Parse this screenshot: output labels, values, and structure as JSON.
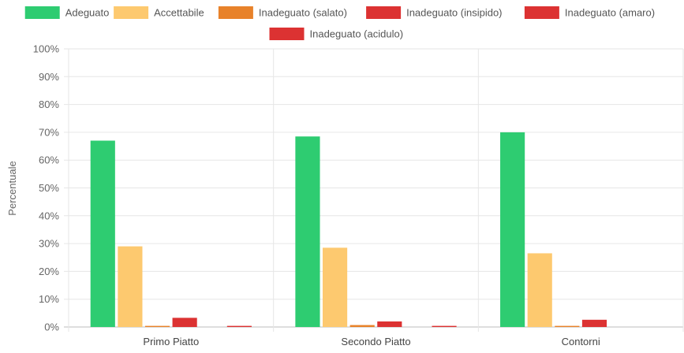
{
  "chart_data": {
    "type": "bar",
    "title": "",
    "xlabel": "",
    "ylabel": "Percentuale",
    "ylim": [
      0,
      100
    ],
    "y_ticks": [
      "0%",
      "10%",
      "20%",
      "30%",
      "40%",
      "50%",
      "60%",
      "70%",
      "80%",
      "90%",
      "100%"
    ],
    "categories": [
      "Primo Piatto",
      "Secondo Piatto",
      "Contorni"
    ],
    "legend_position": "top",
    "grid": true,
    "series": [
      {
        "name": "Adeguato",
        "color": "#2ecc71",
        "values": [
          67,
          68.5,
          70
        ]
      },
      {
        "name": "Accettabile",
        "color": "#fdc96f",
        "values": [
          29,
          28.5,
          26.5
        ]
      },
      {
        "name": "Inadeguato (salato)",
        "color": "#e8822a",
        "values": [
          0.4,
          0.7,
          0.4
        ]
      },
      {
        "name": "Inadeguato (insipido)",
        "color": "#dc3232",
        "values": [
          3.3,
          2,
          2.6
        ]
      },
      {
        "name": "Inadeguato (amaro)",
        "color": "#dc3232",
        "values": [
          0,
          0,
          0
        ]
      },
      {
        "name": "Inadeguato (acidulo)",
        "color": "#dc3232",
        "values": [
          0.4,
          0.4,
          0
        ]
      }
    ]
  }
}
